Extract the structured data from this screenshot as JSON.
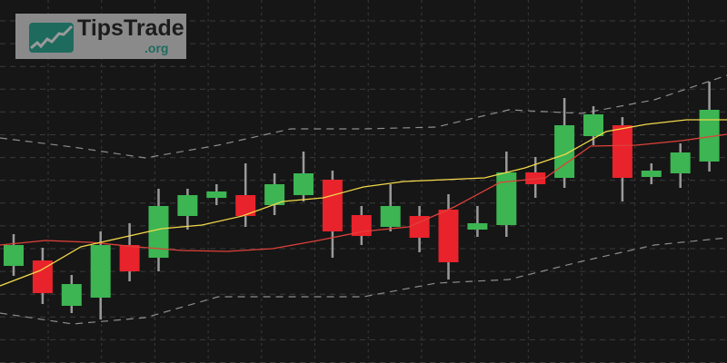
{
  "logo": {
    "name": "TipsTrade",
    "tld": ".org",
    "icon": "chart-trend-up-icon"
  },
  "chart_data": {
    "type": "candlestick",
    "title": "",
    "xlabel": "",
    "ylabel": "",
    "ylim": [
      0,
      100
    ],
    "grid": true,
    "axes_labels_shown": false,
    "colors": {
      "background": "#161616",
      "up": "#3cb552",
      "down": "#e8232b",
      "wick": "#9a9a9a",
      "ma_fast": "#f2d84a",
      "ma_slow": "#e0403a",
      "bands": "#8c8c8c",
      "grid": "#3a3a3a"
    },
    "candles": [
      {
        "o": 26.75,
        "h": 35.5,
        "l": 24,
        "c": 32.5
      },
      {
        "o": 28.25,
        "h": 31.75,
        "l": 16.25,
        "c": 19.25
      },
      {
        "o": 15.75,
        "h": 24.25,
        "l": 13.75,
        "c": 21.75
      },
      {
        "o": 18,
        "h": 36.25,
        "l": 12,
        "c": 32.5
      },
      {
        "o": 32.5,
        "h": 38.5,
        "l": 22.5,
        "c": 25.25
      },
      {
        "o": 29,
        "h": 48,
        "l": 25.25,
        "c": 43.25
      },
      {
        "o": 40.5,
        "h": 48,
        "l": 36.75,
        "c": 46.25
      },
      {
        "o": 45.5,
        "h": 49.25,
        "l": 43.5,
        "c": 47.25
      },
      {
        "o": 46.25,
        "h": 55,
        "l": 37.5,
        "c": 40.5
      },
      {
        "o": 43.5,
        "h": 52.25,
        "l": 40.75,
        "c": 49.25
      },
      {
        "o": 46.25,
        "h": 58.25,
        "l": 44.5,
        "c": 52.25
      },
      {
        "o": 50.5,
        "h": 53,
        "l": 29,
        "c": 36.25
      },
      {
        "o": 40.75,
        "h": 43.25,
        "l": 32.5,
        "c": 35
      },
      {
        "o": 37.5,
        "h": 49.25,
        "l": 36.25,
        "c": 43.25
      },
      {
        "o": 40.5,
        "h": 43.25,
        "l": 30.5,
        "c": 34.5
      },
      {
        "o": 42.25,
        "h": 46.5,
        "l": 23,
        "c": 27.75
      },
      {
        "o": 36.75,
        "h": 43.25,
        "l": 34.75,
        "c": 38.5
      },
      {
        "o": 38,
        "h": 58.25,
        "l": 34.75,
        "c": 52.5
      },
      {
        "o": 52.5,
        "h": 56.75,
        "l": 45.5,
        "c": 49.25
      },
      {
        "o": 51,
        "h": 73,
        "l": 48.25,
        "c": 65.5
      },
      {
        "o": 62.5,
        "h": 70.75,
        "l": 60,
        "c": 68.5
      },
      {
        "o": 65.5,
        "h": 67.75,
        "l": 44.5,
        "c": 51
      },
      {
        "o": 51.25,
        "h": 55,
        "l": 49.25,
        "c": 53
      },
      {
        "o": 52.25,
        "h": 60.5,
        "l": 48.25,
        "c": 58
      },
      {
        "o": 55.5,
        "h": 77.5,
        "l": 52.75,
        "c": 69.75
      }
    ],
    "ma_fast": [
      21.25,
      25.5,
      32,
      34.5,
      37,
      38,
      40.5,
      44.5,
      45.5,
      48.5,
      50,
      50.5,
      51,
      53.75,
      57.5,
      63.75,
      65.75,
      67,
      67
    ],
    "ma_slow": [
      32.5,
      33.75,
      33.25,
      32,
      31,
      30.75,
      31.5,
      33.75,
      36.25,
      37.5,
      43,
      49.75,
      51,
      59.75,
      60,
      61.25,
      63
    ],
    "upper_band": [
      62,
      59.5,
      56.5,
      60,
      64.5,
      64.5,
      65,
      69.75,
      68.75,
      72.5,
      79.25
    ],
    "lower_band": [
      13.75,
      10.75,
      12.5,
      18.25,
      18.25,
      18.25,
      22,
      23,
      28,
      32.5,
      34.5
    ]
  }
}
